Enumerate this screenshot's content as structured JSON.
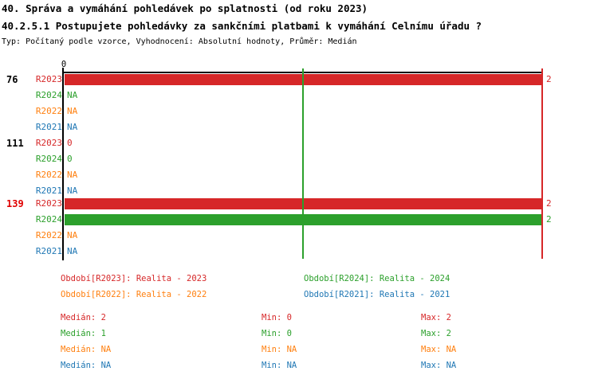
{
  "header": {
    "title1": "40. Správa a vymáhání pohledávek po splatnosti (od roku 2023)",
    "title2": "40.2.5.1 Postupujete pohledávky za sankčními platbami k vymáhání Celnímu úřadu ?",
    "meta": "Typ: Počítaný podle vzorce, Vyhodnocení: Absolutní hodnoty, Průměr: Medián"
  },
  "colors": {
    "R2023": "#d62728",
    "R2024": "#2ca02c",
    "R2022": "#ff7f0e",
    "R2021": "#1f77b4",
    "highlight": "#e00000",
    "axis": "#000000"
  },
  "chart_data": {
    "type": "bar",
    "orientation": "horizontal",
    "axis": {
      "tick_label": "0",
      "xmin": 0,
      "xmax": 2,
      "grid": false
    },
    "median_lines": [
      {
        "series": "R2024",
        "value": 1,
        "color": "#2ca02c"
      },
      {
        "series": "R2023",
        "value": 2,
        "color": "#d62728"
      }
    ],
    "series_order": [
      "R2023",
      "R2024",
      "R2022",
      "R2021"
    ],
    "groups": [
      {
        "label": "76",
        "highlighted": false,
        "rows": [
          {
            "year": "R2023",
            "value": 2,
            "display": "2"
          },
          {
            "year": "R2024",
            "value": null,
            "display": "NA"
          },
          {
            "year": "R2022",
            "value": null,
            "display": "NA"
          },
          {
            "year": "R2021",
            "value": null,
            "display": "NA"
          }
        ]
      },
      {
        "label": "111",
        "highlighted": false,
        "rows": [
          {
            "year": "R2023",
            "value": 0,
            "display": "0"
          },
          {
            "year": "R2024",
            "value": 0,
            "display": "0"
          },
          {
            "year": "R2022",
            "value": null,
            "display": "NA"
          },
          {
            "year": "R2021",
            "value": null,
            "display": "NA"
          }
        ]
      },
      {
        "label": "139",
        "highlighted": true,
        "rows": [
          {
            "year": "R2023",
            "value": 2,
            "display": "2"
          },
          {
            "year": "R2024",
            "value": 2,
            "display": "2"
          },
          {
            "year": "R2022",
            "value": null,
            "display": "NA"
          },
          {
            "year": "R2021",
            "value": null,
            "display": "NA"
          }
        ]
      }
    ]
  },
  "legend": [
    {
      "series": "R2023",
      "label": "Období[R2023]: Realita - 2023"
    },
    {
      "series": "R2024",
      "label": "Období[R2024]: Realita - 2024"
    },
    {
      "series": "R2022",
      "label": "Období[R2022]: Realita - 2022"
    },
    {
      "series": "R2021",
      "label": "Období[R2021]: Realita - 2021"
    }
  ],
  "stats": [
    {
      "series": "R2023",
      "median": "Medián: 2",
      "min": "Min: 0",
      "max": "Max: 2"
    },
    {
      "series": "R2024",
      "median": "Medián: 1",
      "min": "Min: 0",
      "max": "Max: 2"
    },
    {
      "series": "R2022",
      "median": "Medián: NA",
      "min": "Min: NA",
      "max": "Max: NA"
    },
    {
      "series": "R2021",
      "median": "Medián: NA",
      "min": "Min: NA",
      "max": "Max: NA"
    }
  ]
}
